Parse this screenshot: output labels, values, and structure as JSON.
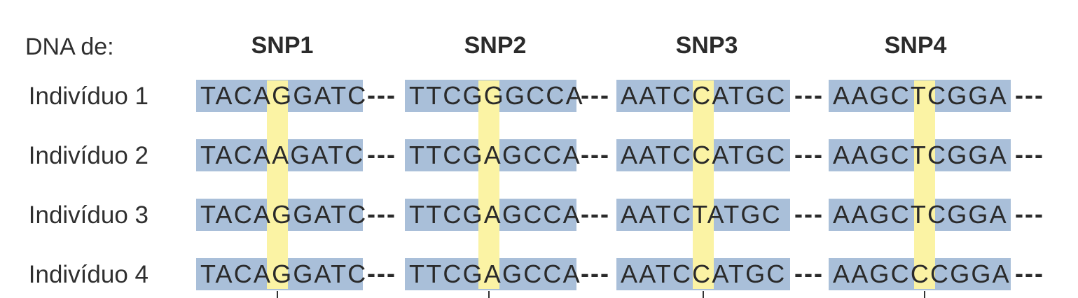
{
  "header_label": "DNA de:",
  "snps": [
    "SNP1",
    "SNP2",
    "SNP3",
    "SNP4"
  ],
  "individuals": [
    {
      "label": "Indivíduo 1",
      "segments": [
        "TACAGGATC",
        "TTCGGGCCA",
        "AATCCATGC",
        "AAGCTCGGA"
      ]
    },
    {
      "label": "Indivíduo 2",
      "segments": [
        "TACAAGATC",
        "TTCGAGCCA",
        "AATCCATGC",
        "AAGCTCGGA"
      ]
    },
    {
      "label": "Indivíduo 3",
      "segments": [
        "TACAGGATC",
        "TTCGAGCCA",
        "AATCTATGC",
        "AAGCTCGGA"
      ]
    },
    {
      "label": "Indivíduo 4",
      "segments": [
        "TACAGGATC",
        "TTCGAGCCA",
        "AATCCATGC",
        "AAGCCCGGA"
      ]
    }
  ],
  "separator": "---",
  "colors": {
    "sequence_box": "#a9bfd9",
    "snp_highlight": "#fbf3a4",
    "text": "#2a2a2a"
  }
}
